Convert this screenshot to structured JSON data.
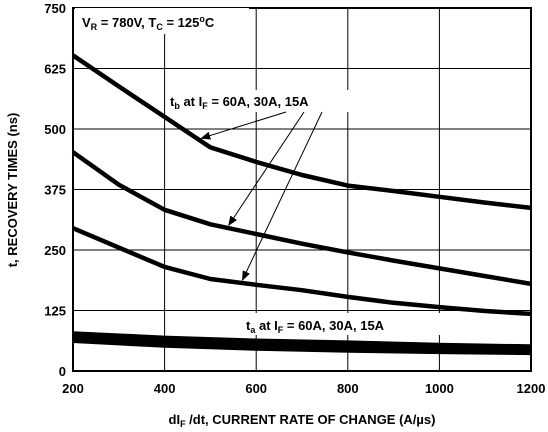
{
  "chart_data": {
    "type": "line",
    "condition": {
      "v_sym": "V",
      "v_sub": "R",
      "v_rest": " = 780V, ",
      "t_sym": "T",
      "t_sub": "C",
      "t_rest": " = 125",
      "t_deg": "o",
      "t_unit": "C"
    },
    "xlabel": {
      "pre": "dI",
      "sub": "F",
      "rest": " /dt, CURRENT RATE OF CHANGE (A/µs)"
    },
    "ylabel": "t, RECOVERY TIMES (ns)",
    "xlim": [
      200,
      1200
    ],
    "ylim": [
      0,
      750
    ],
    "x_ticks": [
      "200",
      "400",
      "600",
      "800",
      "1000",
      "1200"
    ],
    "y_ticks": [
      "0",
      "125",
      "250",
      "375",
      "500",
      "625",
      "750"
    ],
    "grid": true,
    "annotations": {
      "tb": {
        "sym": "t",
        "sub1": "b",
        "mid": " at I",
        "sub2": "F",
        "rest": " = 60A, 30A, 15A"
      },
      "ta": {
        "sym": "t",
        "sub1": "a",
        "mid": " at I",
        "sub2": "F",
        "rest": " = 60A, 30A, 15A"
      }
    },
    "series": [
      {
        "group": "tb",
        "current": "60A",
        "x": [
          200,
          300,
          400,
          500,
          600,
          700,
          800,
          900,
          1000,
          1100,
          1200
        ],
        "values": [
          652,
          588,
          525,
          462,
          432,
          405,
          383,
          372,
          360,
          348,
          337
        ]
      },
      {
        "group": "tb",
        "current": "30A",
        "x": [
          200,
          300,
          400,
          500,
          600,
          700,
          800,
          900,
          1000,
          1100,
          1200
        ],
        "values": [
          452,
          385,
          333,
          303,
          283,
          263,
          245,
          228,
          212,
          196,
          180
        ]
      },
      {
        "group": "tb",
        "current": "15A",
        "x": [
          200,
          300,
          400,
          500,
          600,
          700,
          800,
          900,
          1000,
          1100,
          1200
        ],
        "values": [
          295,
          255,
          215,
          190,
          178,
          167,
          153,
          141,
          132,
          124,
          118
        ]
      },
      {
        "group": "ta",
        "current": "60A",
        "x": [
          200,
          400,
          600,
          800,
          1000,
          1200
        ],
        "values": [
          77,
          68,
          62,
          58,
          53,
          50
        ]
      },
      {
        "group": "ta",
        "current": "30A",
        "x": [
          200,
          400,
          600,
          800,
          1000,
          1200
        ],
        "values": [
          70,
          60,
          54,
          50,
          45,
          42
        ]
      },
      {
        "group": "ta",
        "current": "15A",
        "x": [
          200,
          400,
          600,
          800,
          1000,
          1200
        ],
        "values": [
          63,
          53,
          47,
          43,
          40,
          38
        ]
      }
    ]
  }
}
